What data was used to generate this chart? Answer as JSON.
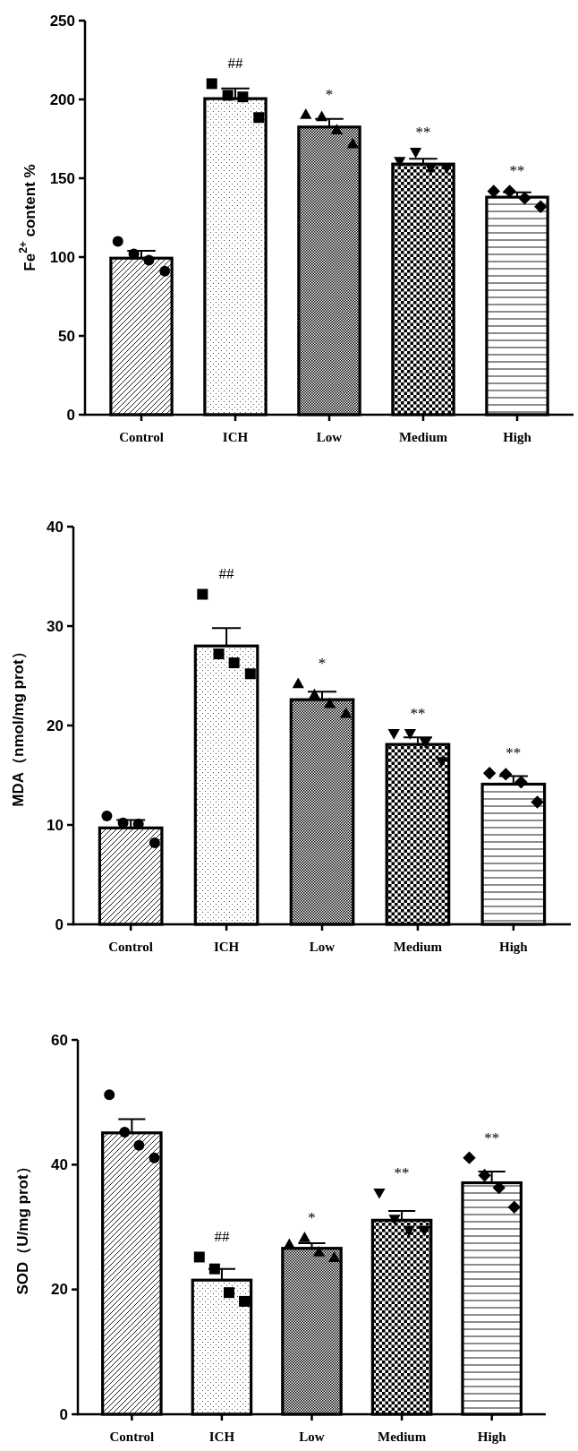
{
  "chart_data": [
    {
      "type": "bar",
      "ylabel": "Fe$^{2+}$ content %",
      "categories": [
        "Control",
        "ICH",
        "Low",
        "Medium",
        "High"
      ],
      "ylim": [
        0,
        250
      ],
      "yticks": [
        0,
        50,
        100,
        150,
        200,
        250
      ],
      "series": [
        {
          "color": "#000000",
          "values": [
            99.3,
            200.5,
            182.5,
            159,
            138
          ],
          "errors": [
            [
              99.3,
              104
            ],
            [
              200.5,
              207
            ],
            [
              182.5,
              187.6
            ],
            [
              159,
              162.4
            ],
            [
              138,
              141
            ]
          ]
        },
        {
          "type": "scatter",
          "marker": "circle",
          "color": "#000000",
          "x": [
            "Control",
            "Control",
            "Control",
            "Control"
          ],
          "values": [
            110,
            102,
            98,
            91
          ]
        },
        {
          "type": "scatter",
          "marker": "square",
          "color": "#000000",
          "x": [
            "ICH",
            "ICH",
            "ICH",
            "ICH"
          ],
          "values": [
            210,
            202.6,
            201.6,
            188.5
          ]
        },
        {
          "type": "scatter",
          "marker": "triangle",
          "color": "#000000",
          "x": [
            "Low",
            "Low",
            "Low",
            "Low"
          ],
          "values": [
            190.4,
            189,
            180.6,
            171.7
          ]
        },
        {
          "type": "scatter",
          "marker": "triangle_down",
          "color": "#000000",
          "x": [
            "Medium",
            "Medium",
            "Medium",
            "Medium"
          ],
          "values": [
            160.7,
            166.6,
            156.5,
            156.5
          ]
        },
        {
          "type": "scatter",
          "marker": "diamond",
          "color": "#000000",
          "x": [
            "High",
            "High",
            "High",
            "High"
          ],
          "values": [
            141.8,
            141.8,
            137.4,
            132
          ]
        }
      ],
      "annotations": [
        "##",
        "*",
        "**",
        "**"
      ]
    },
    {
      "type": "bar",
      "ylabel": "MDA（nmol/mg prot）",
      "categories": [
        "Control",
        "ICH",
        "Low",
        "Medium",
        "High"
      ],
      "ylim": [
        0,
        40
      ],
      "yticks": [
        0,
        10,
        20,
        30,
        40
      ],
      "series": [
        {
          "color": "#000000",
          "values": [
            9.7,
            28,
            22.6,
            18.1,
            14.1
          ],
          "errors": [
            [
              9.7,
              10.5
            ],
            [
              28,
              29.8
            ],
            [
              22.6,
              23.4
            ],
            [
              18.1,
              18.8
            ],
            [
              14.1,
              14.9
            ]
          ]
        },
        {
          "type": "scatter",
          "marker": "circle",
          "color": "#000000",
          "x": [
            "Control",
            "Control",
            "Control",
            "Control"
          ],
          "values": [
            10.9,
            10.2,
            10.1,
            8.2
          ]
        },
        {
          "type": "scatter",
          "marker": "square",
          "color": "#000000",
          "x": [
            "ICH",
            "ICH",
            "ICH",
            "ICH"
          ],
          "values": [
            33.2,
            27.2,
            26.3,
            25.2
          ]
        },
        {
          "type": "scatter",
          "marker": "triangle",
          "color": "#000000",
          "x": [
            "Low",
            "Low",
            "Low",
            "Low"
          ],
          "values": [
            24.2,
            23.1,
            22.2,
            21.2
          ]
        },
        {
          "type": "scatter",
          "marker": "triangle_down",
          "color": "#000000",
          "x": [
            "Medium",
            "Medium",
            "Medium",
            "Medium"
          ],
          "values": [
            19.2,
            19.2,
            18.3,
            16.4
          ]
        },
        {
          "type": "scatter",
          "marker": "diamond",
          "color": "#000000",
          "x": [
            "High",
            "High",
            "High",
            "High"
          ],
          "values": [
            15.2,
            15.1,
            14.3,
            12.3
          ]
        }
      ],
      "annotations": [
        "##",
        "*",
        "**",
        "**"
      ]
    },
    {
      "type": "bar",
      "ylabel": "SOD（U/mg prot）",
      "categories": [
        "Control",
        "ICH",
        "Low",
        "Medium",
        "High"
      ],
      "ylim": [
        0,
        60
      ],
      "yticks": [
        0,
        20,
        40,
        60
      ],
      "series": [
        {
          "color": "#000000",
          "values": [
            45.1,
            21.5,
            26.6,
            31.1,
            37.1
          ],
          "errors": [
            [
              45.1,
              47.3
            ],
            [
              21.5,
              23.3
            ],
            [
              26.6,
              27.4
            ],
            [
              31.1,
              32.6
            ],
            [
              37.1,
              38.9
            ]
          ]
        },
        {
          "type": "scatter",
          "marker": "circle",
          "color": "#000000",
          "x": [
            "Control",
            "Control",
            "Control",
            "Control"
          ],
          "values": [
            51.2,
            45.2,
            43.1,
            41.1
          ]
        },
        {
          "type": "scatter",
          "marker": "square",
          "color": "#000000",
          "x": [
            "ICH",
            "ICH",
            "ICH",
            "ICH"
          ],
          "values": [
            25.2,
            23.3,
            19.5,
            18.1
          ]
        },
        {
          "type": "scatter",
          "marker": "triangle",
          "color": "#000000",
          "x": [
            "Low",
            "Low",
            "Low",
            "Low"
          ],
          "values": [
            27.2,
            28.3,
            26,
            25.1
          ]
        },
        {
          "type": "scatter",
          "marker": "triangle_down",
          "color": "#000000",
          "x": [
            "Medium",
            "Medium",
            "Medium",
            "Medium"
          ],
          "values": [
            35.5,
            31.3,
            29.5,
            29.5
          ]
        },
        {
          "type": "scatter",
          "marker": "diamond",
          "color": "#000000",
          "x": [
            "High",
            "High",
            "High",
            "High"
          ],
          "values": [
            41.1,
            38.3,
            36.3,
            33.2
          ]
        }
      ],
      "annotations": [
        "##",
        "*",
        "**",
        "**"
      ]
    }
  ]
}
